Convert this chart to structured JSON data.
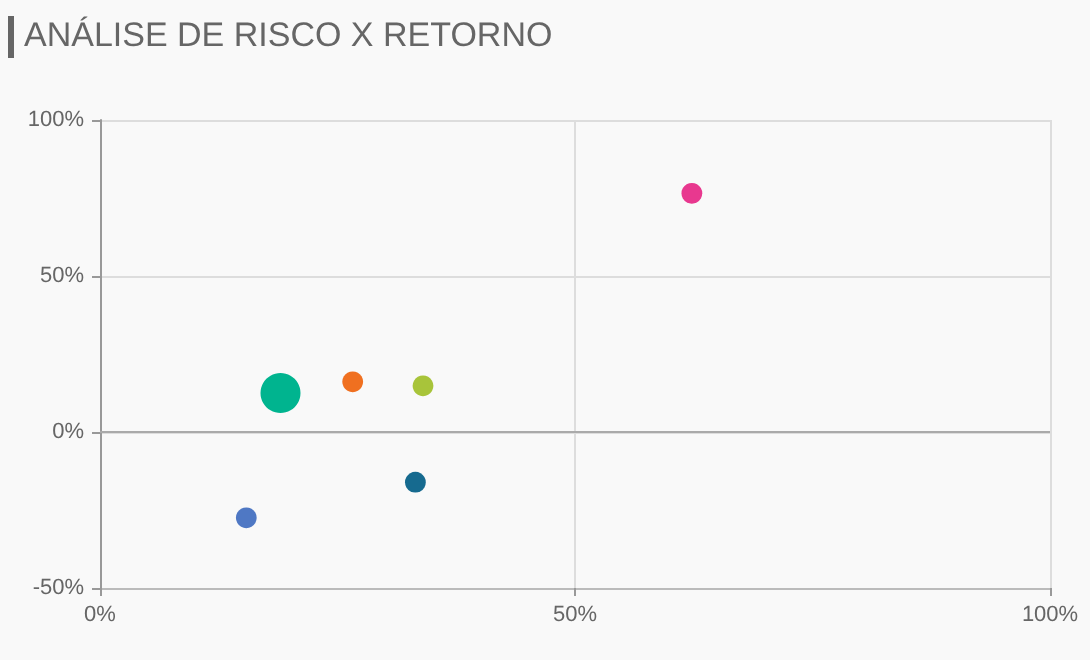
{
  "chart_data": {
    "type": "bubble",
    "title": "ANÁLISE DE RISCO X RETORNO",
    "x": [
      62.3,
      26.6,
      34.0,
      19.0,
      33.2,
      15.4
    ],
    "values": [
      76.5,
      16.1,
      14.8,
      12.5,
      -16.1,
      -27.5
    ],
    "sizes": [
      0.27,
      0.27,
      0.27,
      1,
      0.27,
      0.27
    ],
    "colors": [
      "#e8388f",
      "#f07020",
      "#a8c43a",
      "#00b48f",
      "#166a8f",
      "#4f78c4"
    ],
    "xlim": [
      0,
      100
    ],
    "ylim": [
      -50,
      100
    ],
    "xticks": [
      {
        "value": 0,
        "label": "0%"
      },
      {
        "value": 50,
        "label": "50%"
      },
      {
        "value": 100,
        "label": "100%"
      }
    ],
    "yticks": [
      {
        "value": -50,
        "label": "-50%"
      },
      {
        "value": 0,
        "label": "0%"
      },
      {
        "value": 50,
        "label": "50%"
      },
      {
        "value": 100,
        "label": "100%"
      }
    ],
    "grid": true
  }
}
